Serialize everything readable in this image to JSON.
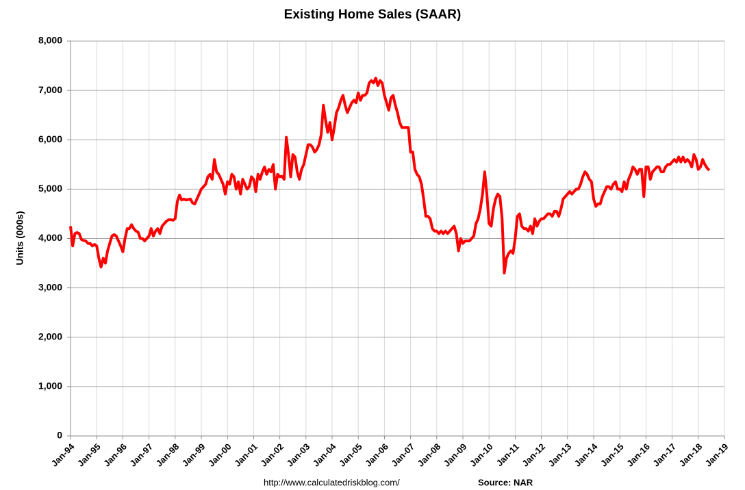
{
  "chart_data": {
    "type": "line",
    "title": "Existing Home Sales (SAAR)",
    "y_label": "Units (000s)",
    "footer_url": "http://www.calculatedriskblog.com/",
    "footer_source": "Source: NAR",
    "color": "#ff0000",
    "grid": true,
    "ylim": [
      0,
      8000
    ],
    "yticks": [
      0,
      {
        "value": 1000,
        "label": "1,000"
      },
      {
        "value": 2000,
        "label": "2,000"
      },
      {
        "value": 3000,
        "label": "3,000"
      },
      {
        "value": 4000,
        "label": "4,000"
      },
      {
        "value": 5000,
        "label": "5,000"
      },
      {
        "value": 6000,
        "label": "6,000"
      },
      {
        "value": 7000,
        "label": "7,000"
      },
      {
        "value": 8000,
        "label": "8,000"
      }
    ],
    "categories": [
      "Jan-94",
      null,
      null,
      null,
      null,
      null,
      null,
      null,
      null,
      null,
      null,
      null,
      "Jan-95",
      null,
      null,
      null,
      null,
      null,
      null,
      null,
      null,
      null,
      null,
      null,
      "Jan-96",
      null,
      null,
      null,
      null,
      null,
      null,
      null,
      null,
      null,
      null,
      null,
      "Jan-97",
      null,
      null,
      null,
      null,
      null,
      null,
      null,
      null,
      null,
      null,
      null,
      "Jan-98",
      null,
      null,
      null,
      null,
      null,
      null,
      null,
      null,
      null,
      null,
      null,
      "Jan-99",
      null,
      null,
      null,
      null,
      null,
      null,
      null,
      null,
      null,
      null,
      null,
      "Jan-00",
      null,
      null,
      null,
      null,
      null,
      null,
      null,
      null,
      null,
      null,
      null,
      "Jan-01",
      null,
      null,
      null,
      null,
      null,
      null,
      null,
      null,
      null,
      null,
      null,
      "Jan-02",
      null,
      null,
      null,
      null,
      null,
      null,
      null,
      null,
      null,
      null,
      null,
      "Jan-03",
      null,
      null,
      null,
      null,
      null,
      null,
      null,
      null,
      null,
      null,
      null,
      "Jan-04",
      null,
      null,
      null,
      null,
      null,
      null,
      null,
      null,
      null,
      null,
      null,
      "Jan-05",
      null,
      null,
      null,
      null,
      null,
      null,
      null,
      null,
      null,
      null,
      null,
      "Jan-06",
      null,
      null,
      null,
      null,
      null,
      null,
      null,
      null,
      null,
      null,
      null,
      "Jan-07",
      null,
      null,
      null,
      null,
      null,
      null,
      null,
      null,
      null,
      null,
      null,
      "Jan-08",
      null,
      null,
      null,
      null,
      null,
      null,
      null,
      null,
      null,
      null,
      null,
      "Jan-09",
      null,
      null,
      null,
      null,
      null,
      null,
      null,
      null,
      null,
      null,
      null,
      "Jan-10",
      null,
      null,
      null,
      null,
      null,
      null,
      null,
      null,
      null,
      null,
      null,
      "Jan-11",
      null,
      null,
      null,
      null,
      null,
      null,
      null,
      null,
      null,
      null,
      null,
      "Jan-12",
      null,
      null,
      null,
      null,
      null,
      null,
      null,
      null,
      null,
      null,
      null,
      "Jan-13",
      null,
      null,
      null,
      null,
      null,
      null,
      null,
      null,
      null,
      null,
      null,
      "Jan-14",
      null,
      null,
      null,
      null,
      null,
      null,
      null,
      null,
      null,
      null,
      null,
      "Jan-15",
      null,
      null,
      null,
      null,
      null,
      null,
      null,
      null,
      null,
      null,
      null,
      "Jan-16",
      null,
      null,
      null,
      null,
      null,
      null,
      null,
      null,
      null,
      null,
      null,
      "Jan-17",
      null,
      null,
      null,
      null,
      null,
      null,
      null,
      null,
      null,
      null,
      null,
      "Jan-18",
      null,
      null,
      null,
      null,
      null,
      null,
      null,
      null,
      null,
      null,
      null,
      "Jan-19"
    ],
    "values": [
      4250,
      3850,
      4100,
      4120,
      4100,
      3980,
      3960,
      3950,
      3900,
      3900,
      3850,
      3880,
      3850,
      3600,
      3420,
      3600,
      3500,
      3750,
      3900,
      4050,
      4080,
      4050,
      3950,
      3850,
      3730,
      4000,
      4200,
      4200,
      4280,
      4200,
      4150,
      4130,
      4000,
      4000,
      3950,
      4000,
      4050,
      4200,
      4050,
      4150,
      4200,
      4100,
      4250,
      4300,
      4350,
      4380,
      4380,
      4370,
      4400,
      4750,
      4880,
      4780,
      4800,
      4780,
      4790,
      4800,
      4720,
      4700,
      4800,
      4900,
      5000,
      5050,
      5100,
      5250,
      5300,
      5200,
      5600,
      5350,
      5300,
      5200,
      5100,
      4900,
      5150,
      5100,
      5300,
      5250,
      5000,
      5150,
      4900,
      5200,
      5100,
      5000,
      5050,
      5250,
      5200,
      4950,
      5300,
      5200,
      5350,
      5450,
      5300,
      5400,
      5350,
      5500,
      5000,
      5300,
      5250,
      5260,
      5200,
      6050,
      5700,
      5250,
      5700,
      5650,
      5350,
      5200,
      5400,
      5500,
      5700,
      5900,
      5900,
      5850,
      5750,
      5800,
      5900,
      6100,
      6700,
      6400,
      6150,
      6350,
      6000,
      6250,
      6550,
      6650,
      6800,
      6900,
      6700,
      6550,
      6650,
      6750,
      6800,
      6750,
      6950,
      6800,
      6900,
      6900,
      6950,
      7150,
      7200,
      7150,
      7250,
      7100,
      7200,
      7150,
      6900,
      6750,
      6600,
      6850,
      6900,
      6700,
      6550,
      6350,
      6250,
      6250,
      6250,
      6250,
      5750,
      5750,
      5400,
      5300,
      5250,
      5100,
      4800,
      4450,
      4450,
      4400,
      4200,
      4150,
      4150,
      4100,
      4150,
      4100,
      4150,
      4100,
      4150,
      4200,
      4250,
      4100,
      3750,
      4000,
      3900,
      3950,
      3950,
      3950,
      4000,
      4050,
      4300,
      4400,
      4600,
      4900,
      5350,
      4900,
      4300,
      4250,
      4600,
      4800,
      4900,
      4850,
      4400,
      3300,
      3600,
      3700,
      3750,
      3700,
      4000,
      4450,
      4500,
      4250,
      4200,
      4200,
      4150,
      4250,
      4100,
      4400,
      4250,
      4350,
      4400,
      4400,
      4450,
      4500,
      4500,
      4450,
      4550,
      4550,
      4450,
      4600,
      4800,
      4850,
      4900,
      4950,
      4900,
      4950,
      5000,
      5000,
      5100,
      5250,
      5350,
      5300,
      5200,
      5150,
      4800,
      4650,
      4700,
      4700,
      4850,
      4950,
      5050,
      5050,
      5000,
      5100,
      5150,
      5000,
      5000,
      4950,
      5150,
      5000,
      5200,
      5300,
      5450,
      5400,
      5300,
      5400,
      5400,
      4850,
      5450,
      5450,
      5200,
      5350,
      5400,
      5450,
      5450,
      5350,
      5350,
      5450,
      5500,
      5500,
      5550,
      5600,
      5550,
      5650,
      5550,
      5650,
      5550,
      5600,
      5550,
      5450,
      5700,
      5600,
      5400,
      5450,
      5600,
      5500,
      5430,
      5380,
      null,
      null,
      null,
      null,
      null,
      null,
      null
    ]
  }
}
